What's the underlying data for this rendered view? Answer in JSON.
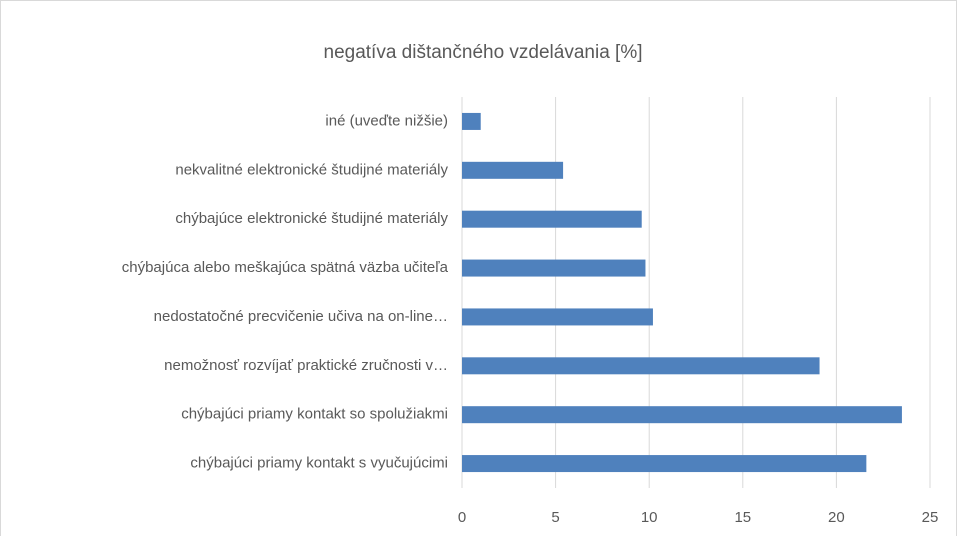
{
  "chart_data": {
    "type": "hbar",
    "title": "negatíva dištančného vzdelávania [%]",
    "categories": [
      "iné (uveďte nižšie)",
      "nekvalitné elektronické študijné materiály",
      "chýbajúce elektronické študijné materiály",
      "chýbajúca alebo meškajúca spätná väzba učiteľa",
      "nedostatočné precvičenie učiva na on-line…",
      "nemožnosť rozvíjať praktické zručnosti v…",
      "chýbajúci priamy kontakt so spolužiakmi",
      "chýbajúci priamy kontakt s vyučujúcimi"
    ],
    "values": [
      1.0,
      5.4,
      9.6,
      9.8,
      10.2,
      19.1,
      23.5,
      21.6
    ],
    "color": "#4f81bd",
    "xlim": [
      0,
      25
    ],
    "xticks": [
      0,
      5,
      10,
      15,
      20,
      25
    ],
    "grid": true
  }
}
